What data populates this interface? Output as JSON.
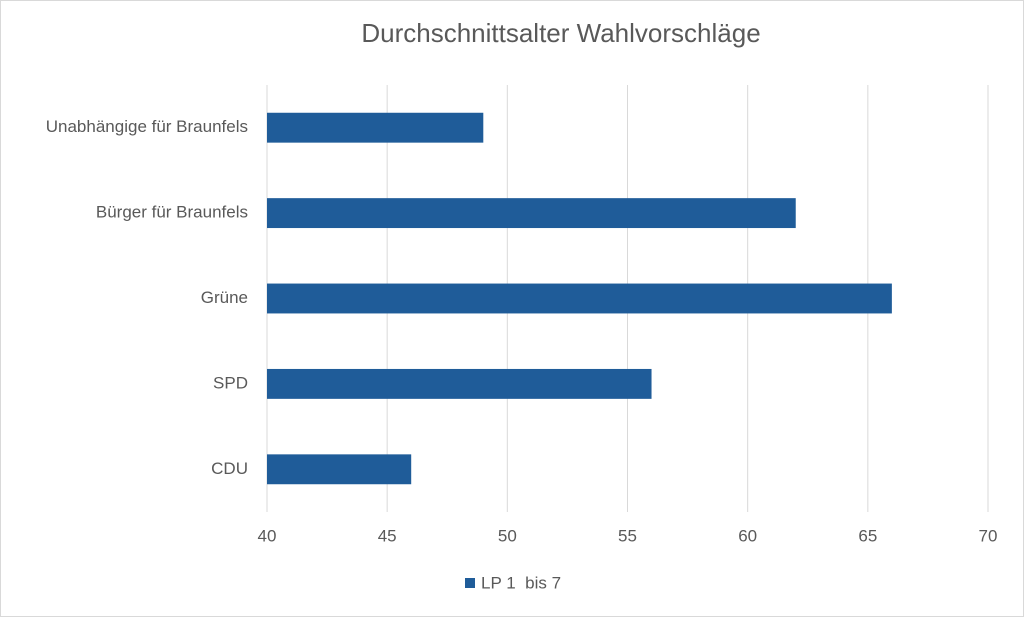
{
  "chart_data": {
    "type": "bar",
    "orientation": "horizontal",
    "title": "Durchschnittsalter Wahlvorschläge",
    "categories": [
      "Unabhängige für Braunfels",
      "Bürger für Braunfels",
      "Grüne",
      "SPD",
      "CDU"
    ],
    "series": [
      {
        "name": "LP 1  bis 7",
        "color": "#1f5c99",
        "values": [
          49,
          62,
          66,
          56,
          46
        ]
      }
    ],
    "xlim": [
      40,
      70
    ],
    "xticks": [
      40,
      45,
      50,
      55,
      60,
      65,
      70
    ],
    "grid": true,
    "legend": "bottom"
  }
}
